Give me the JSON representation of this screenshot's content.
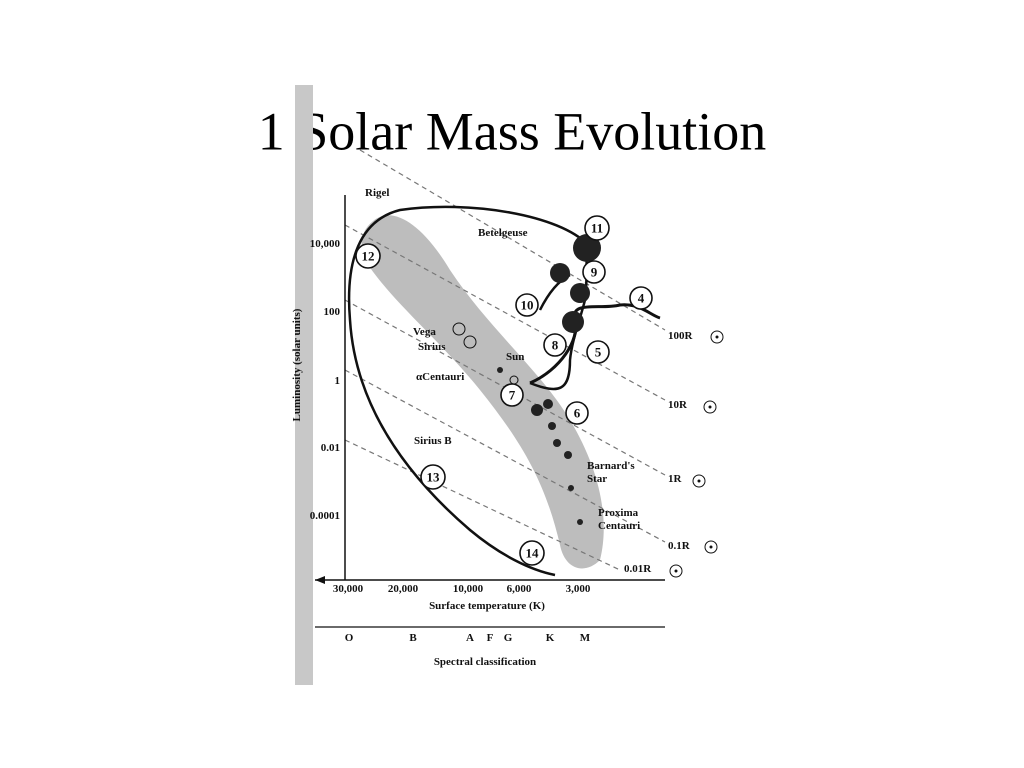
{
  "title": "1 Solar Mass Evolution",
  "axes": {
    "y_label": "Luminosity (solar units)",
    "y_ticks": [
      "10,000",
      "100",
      "1",
      "0.01",
      "0.0001"
    ],
    "x_ticks": [
      "30,000",
      "20,000",
      "10,000",
      "6,000",
      "3,000"
    ],
    "x_label": "Surface temperature (K)",
    "spectral_classes": [
      "O",
      "B",
      "A",
      "F",
      "G",
      "K",
      "M"
    ],
    "spectral_label": "Spectral classification"
  },
  "stars": [
    "Rigel",
    "Betelgeuse",
    "Vega",
    "Sirius",
    "Sun",
    "αCentauri",
    "Sirius B",
    "Barnard's",
    "Star",
    "Proxima",
    "Centauri"
  ],
  "radius_labels": [
    "100R",
    "10R",
    "1R",
    "0.1R",
    "0.01R"
  ],
  "stages": [
    "4",
    "5",
    "6",
    "7",
    "8",
    "9",
    "10",
    "11",
    "12",
    "13",
    "14"
  ]
}
